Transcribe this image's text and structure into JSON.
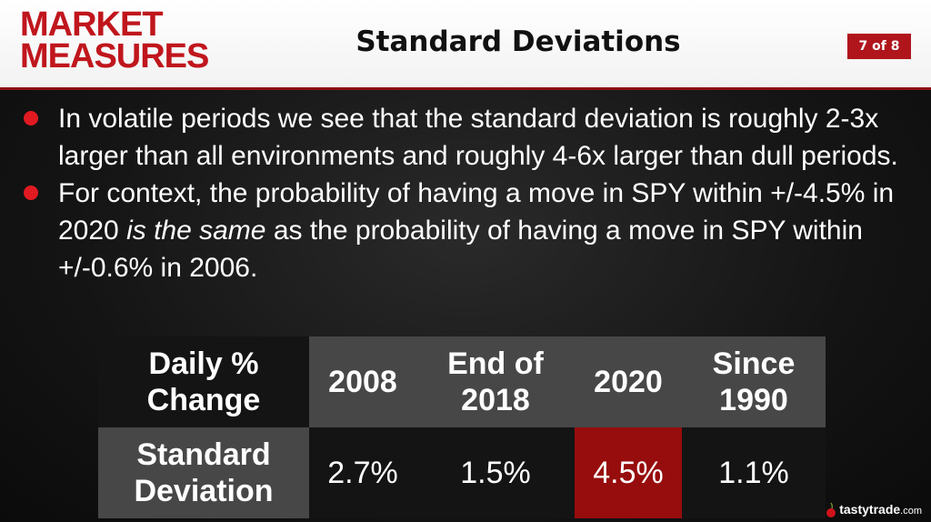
{
  "header": {
    "logo_line1": "MARKET",
    "logo_line2": "MEASURES",
    "title": "Standard Deviations",
    "page_indicator": "7 of 8",
    "accent_color": "#c0161d"
  },
  "bullets": [
    {
      "text": "In volatile periods we see that the standard deviation is roughly 2-3x larger than all environments and roughly 4-6x larger than dull periods."
    },
    {
      "pre": "For context, the probability of having a move in SPY within +/-4.5% in 2020 ",
      "em": "is the same",
      "post": " as the probability of having a move in SPY within +/-0.6% in 2006."
    }
  ],
  "table": {
    "corner_line1": "Daily %",
    "corner_line2": "Change",
    "columns": [
      {
        "line1": "2008",
        "line2": ""
      },
      {
        "line1": "End of",
        "line2": "2018"
      },
      {
        "line1": "2020",
        "line2": ""
      },
      {
        "line1": "Since",
        "line2": "1990"
      }
    ],
    "row_label_line1": "Standard",
    "row_label_line2": "Deviation",
    "values": [
      "2.7%",
      "1.5%",
      "4.5%",
      "1.1%"
    ],
    "highlight_color": "#970d0d"
  },
  "footer": {
    "brand": "tastytrade",
    "tld": ".com",
    "icon": "cherry-icon"
  }
}
